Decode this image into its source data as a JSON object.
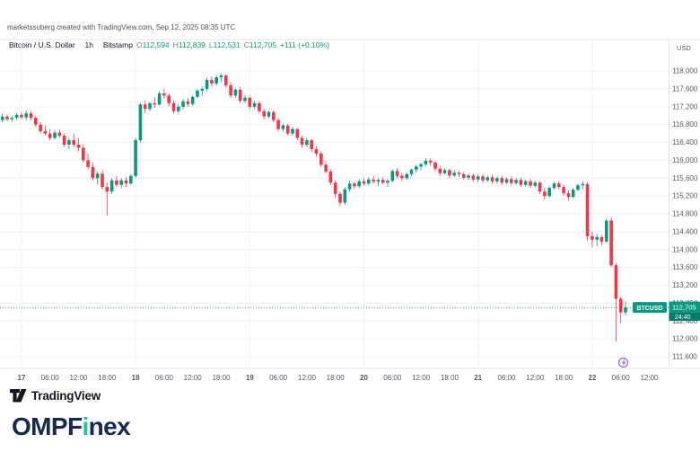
{
  "watermark": "marketssuberg created with TradingView.com, Sep 12, 2025 08:35 UTC",
  "legend": {
    "symbol": "Bitcoin / U.S. Dollar",
    "separator": "·",
    "interval": "1h",
    "exchange": "Bitstamp",
    "ohlc": [
      {
        "label": "O",
        "value": "112,594"
      },
      {
        "label": "H",
        "value": "112,839"
      },
      {
        "label": "L",
        "value": "112,531"
      },
      {
        "label": "C",
        "value": "112,705"
      }
    ],
    "change": "+111 (+0.10%)"
  },
  "price_tag": {
    "symbol": "BTCUSD",
    "price": "112,705",
    "countdown": "24:40"
  },
  "footer": {
    "tradingview_label": "TradingView",
    "brand_pre": "OMPF",
    "brand_accent": "i",
    "brand_post": "nex"
  },
  "colors": {
    "up": "#089981",
    "down": "#f23645",
    "axis_text": "#555962",
    "grid": "#eef1f6",
    "border": "#e0e3eb",
    "tag_bg": "#089981",
    "tag_countdown_bg": "#067d6b",
    "event": "#9c6ade",
    "logo_text": "#131722",
    "brand_navy": "#17294e",
    "brand_green": "#1ec39a"
  },
  "chart_data": {
    "type": "candlestick",
    "title": "Bitcoin / U.S. Dollar",
    "symbol": "BTCUSD",
    "interval": "1h",
    "exchange": "Bitstamp",
    "unit": "USD",
    "timezone": "UTC",
    "start": "2025-09-16 20:00",
    "ylim": [
      111600,
      118000
    ],
    "price_step": 400,
    "grid": true,
    "current_price": 112705,
    "countdown": "24:40",
    "ohlc_current": {
      "open": 112594,
      "high": 112839,
      "low": 112531,
      "close": 112705,
      "change": 111,
      "change_pct": 0.1
    },
    "price_ticks": [
      "118,000",
      "117,600",
      "117,200",
      "116,800",
      "116,400",
      "116,000",
      "115,600",
      "115,200",
      "114,800",
      "114,400",
      "114,000",
      "113,600",
      "113,200",
      "112,800",
      "112,400",
      "112,000",
      "111,600"
    ],
    "time_ticks": [
      {
        "i": 4,
        "label": "17",
        "major": true
      },
      {
        "i": 10,
        "label": "06:00",
        "major": false
      },
      {
        "i": 16,
        "label": "12:00",
        "major": false
      },
      {
        "i": 22,
        "label": "18:00",
        "major": false
      },
      {
        "i": 28,
        "label": "18",
        "major": true
      },
      {
        "i": 34,
        "label": "06:00",
        "major": false
      },
      {
        "i": 40,
        "label": "12:00",
        "major": false
      },
      {
        "i": 46,
        "label": "18:00",
        "major": false
      },
      {
        "i": 52,
        "label": "19",
        "major": true
      },
      {
        "i": 58,
        "label": "06:00",
        "major": false
      },
      {
        "i": 64,
        "label": "12:00",
        "major": false
      },
      {
        "i": 70,
        "label": "18:00",
        "major": false
      },
      {
        "i": 76,
        "label": "20",
        "major": true
      },
      {
        "i": 82,
        "label": "06:00",
        "major": false
      },
      {
        "i": 88,
        "label": "12:00",
        "major": false
      },
      {
        "i": 94,
        "label": "18:00",
        "major": false
      },
      {
        "i": 100,
        "label": "21",
        "major": true
      },
      {
        "i": 106,
        "label": "06:00",
        "major": false
      },
      {
        "i": 112,
        "label": "12:00",
        "major": false
      },
      {
        "i": 118,
        "label": "18:00",
        "major": false
      },
      {
        "i": 124,
        "label": "22",
        "major": true
      },
      {
        "i": 130,
        "label": "06:00",
        "major": false
      },
      {
        "i": 136,
        "label": "12:00",
        "major": false
      }
    ],
    "candles": [
      [
        116900,
        117050,
        116850,
        116980
      ],
      [
        116980,
        117030,
        116880,
        116920
      ],
      [
        116920,
        117000,
        116860,
        116950
      ],
      [
        116950,
        117060,
        116900,
        117020
      ],
      [
        117020,
        117080,
        116930,
        116960
      ],
      [
        116960,
        117120,
        116900,
        117050
      ],
      [
        117050,
        117100,
        116900,
        116950
      ],
      [
        116950,
        117000,
        116750,
        116800
      ],
      [
        116800,
        116850,
        116600,
        116650
      ],
      [
        116650,
        116780,
        116550,
        116600
      ],
      [
        116600,
        116700,
        116450,
        116500
      ],
      [
        116500,
        116680,
        116460,
        116620
      ],
      [
        116620,
        116700,
        116500,
        116550
      ],
      [
        116550,
        116600,
        116300,
        116350
      ],
      [
        116350,
        116500,
        116250,
        116450
      ],
      [
        116450,
        116600,
        116300,
        116350
      ],
      [
        116350,
        116500,
        116200,
        116280
      ],
      [
        116280,
        116350,
        115950,
        116000
      ],
      [
        116000,
        116150,
        115800,
        115850
      ],
      [
        115850,
        115950,
        115550,
        115600
      ],
      [
        115600,
        115750,
        115450,
        115700
      ],
      [
        115700,
        115780,
        115350,
        115400
      ],
      [
        115400,
        115500,
        114760,
        115300
      ],
      [
        115300,
        115600,
        115250,
        115550
      ],
      [
        115550,
        115650,
        115400,
        115450
      ],
      [
        115450,
        115600,
        115380,
        115550
      ],
      [
        115550,
        115620,
        115400,
        115480
      ],
      [
        115480,
        115700,
        115450,
        115650
      ],
      [
        115650,
        116500,
        115600,
        116450
      ],
      [
        116450,
        117280,
        116400,
        117250
      ],
      [
        117250,
        117350,
        117050,
        117150
      ],
      [
        117150,
        117300,
        117100,
        117280
      ],
      [
        117280,
        117420,
        117180,
        117250
      ],
      [
        117250,
        117550,
        117220,
        117500
      ],
      [
        117500,
        117600,
        117380,
        117450
      ],
      [
        117450,
        117500,
        117200,
        117280
      ],
      [
        117280,
        117350,
        117050,
        117100
      ],
      [
        117100,
        117250,
        117050,
        117200
      ],
      [
        117200,
        117380,
        117150,
        117320
      ],
      [
        117320,
        117400,
        117200,
        117260
      ],
      [
        117260,
        117450,
        117220,
        117420
      ],
      [
        117420,
        117600,
        117380,
        117560
      ],
      [
        117560,
        117650,
        117450,
        117600
      ],
      [
        117600,
        117850,
        117550,
        117800
      ],
      [
        117800,
        117880,
        117650,
        117720
      ],
      [
        117720,
        117900,
        117680,
        117860
      ],
      [
        117860,
        117950,
        117750,
        117900
      ],
      [
        117900,
        117930,
        117620,
        117680
      ],
      [
        117680,
        117750,
        117400,
        117450
      ],
      [
        117450,
        117620,
        117400,
        117580
      ],
      [
        117580,
        117650,
        117280,
        117330
      ],
      [
        117330,
        117450,
        117280,
        117400
      ],
      [
        117400,
        117430,
        117150,
        117200
      ],
      [
        117200,
        117330,
        117150,
        117280
      ],
      [
        117280,
        117320,
        117050,
        117100
      ],
      [
        117100,
        117150,
        116920,
        116980
      ],
      [
        116980,
        117120,
        116950,
        117080
      ],
      [
        117080,
        117120,
        116850,
        116900
      ],
      [
        116900,
        116950,
        116650,
        116700
      ],
      [
        116700,
        116820,
        116650,
        116780
      ],
      [
        116780,
        116820,
        116550,
        116600
      ],
      [
        116600,
        116750,
        116550,
        116700
      ],
      [
        116700,
        116720,
        116450,
        116500
      ],
      [
        116500,
        116550,
        116280,
        116350
      ],
      [
        116350,
        116500,
        116300,
        116450
      ],
      [
        116450,
        116480,
        116180,
        116250
      ],
      [
        116250,
        116320,
        116080,
        116150
      ],
      [
        116150,
        116200,
        115850,
        115900
      ],
      [
        115900,
        115980,
        115700,
        115750
      ],
      [
        115750,
        115800,
        115450,
        115500
      ],
      [
        115500,
        115550,
        115150,
        115250
      ],
      [
        115250,
        115300,
        114980,
        115050
      ],
      [
        115050,
        115400,
        115000,
        115350
      ],
      [
        115350,
        115550,
        115300,
        115480
      ],
      [
        115480,
        115520,
        115350,
        115420
      ],
      [
        115420,
        115580,
        115380,
        115530
      ],
      [
        115530,
        115600,
        115430,
        115480
      ],
      [
        115480,
        115620,
        115440,
        115570
      ],
      [
        115570,
        115650,
        115480,
        115520
      ],
      [
        115520,
        115600,
        115420,
        115560
      ],
      [
        115560,
        115620,
        115460,
        115500
      ],
      [
        115500,
        115580,
        115400,
        115540
      ],
      [
        115540,
        115800,
        115500,
        115760
      ],
      [
        115760,
        115820,
        115600,
        115650
      ],
      [
        115650,
        115720,
        115540,
        115600
      ],
      [
        115600,
        115720,
        115560,
        115690
      ],
      [
        115690,
        115810,
        115650,
        115790
      ],
      [
        115790,
        115900,
        115720,
        115860
      ],
      [
        115860,
        115950,
        115780,
        115910
      ],
      [
        115910,
        116050,
        115860,
        115990
      ],
      [
        115990,
        116040,
        115880,
        115950
      ],
      [
        115950,
        115990,
        115750,
        115810
      ],
      [
        115810,
        115880,
        115650,
        115710
      ],
      [
        115710,
        115820,
        115680,
        115780
      ],
      [
        115780,
        115810,
        115600,
        115660
      ],
      [
        115660,
        115780,
        115620,
        115720
      ],
      [
        115720,
        115760,
        115620,
        115690
      ],
      [
        115690,
        115740,
        115560,
        115610
      ],
      [
        115610,
        115700,
        115560,
        115660
      ],
      [
        115660,
        115700,
        115520,
        115570
      ],
      [
        115570,
        115680,
        115520,
        115640
      ],
      [
        115640,
        115690,
        115500,
        115550
      ],
      [
        115550,
        115660,
        115510,
        115620
      ],
      [
        115620,
        115680,
        115480,
        115530
      ],
      [
        115530,
        115640,
        115490,
        115600
      ],
      [
        115600,
        115650,
        115450,
        115500
      ],
      [
        115500,
        115620,
        115460,
        115580
      ],
      [
        115580,
        115640,
        115440,
        115490
      ],
      [
        115490,
        115600,
        115450,
        115560
      ],
      [
        115560,
        115610,
        115400,
        115450
      ],
      [
        115450,
        115570,
        115410,
        115530
      ],
      [
        115530,
        115580,
        115380,
        115430
      ],
      [
        115430,
        115540,
        115390,
        115500
      ],
      [
        115500,
        115530,
        115250,
        115300
      ],
      [
        115300,
        115380,
        115120,
        115200
      ],
      [
        115200,
        115420,
        115160,
        115380
      ],
      [
        115380,
        115520,
        115340,
        115480
      ],
      [
        115480,
        115530,
        115350,
        115400
      ],
      [
        115400,
        115460,
        115200,
        115260
      ],
      [
        115260,
        115330,
        115100,
        115180
      ],
      [
        115180,
        115380,
        115150,
        115340
      ],
      [
        115340,
        115480,
        115300,
        115440
      ],
      [
        115440,
        115520,
        115360,
        115470
      ],
      [
        115470,
        115500,
        114200,
        114300
      ],
      [
        114300,
        114400,
        114050,
        114220
      ],
      [
        114220,
        114350,
        114080,
        114280
      ],
      [
        114280,
        114330,
        114100,
        114180
      ],
      [
        114180,
        114700,
        114150,
        114650
      ],
      [
        114650,
        114720,
        113600,
        113650
      ],
      [
        113650,
        113700,
        111950,
        112900
      ],
      [
        112900,
        112950,
        112350,
        112594
      ],
      [
        112594,
        112839,
        112531,
        112705
      ]
    ]
  }
}
